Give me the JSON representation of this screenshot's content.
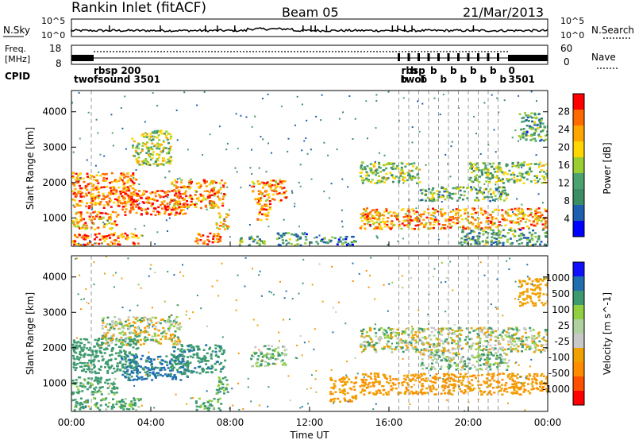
{
  "header": {
    "station": "Rankin Inlet (fitACF)",
    "beam": "Beam 05",
    "date": "21/Mar/2013"
  },
  "noise_panel": {
    "left_label": "N.Sky",
    "right_label": "N.Search",
    "left_ticks": [
      "10^5",
      "10^0"
    ],
    "right_ticks": [
      "10^5",
      "10^0"
    ]
  },
  "freq_panel": {
    "left_label_1": "Freq.",
    "left_label_2": "[MHz]",
    "left_ticks": [
      "18",
      "8"
    ],
    "right_label": "Nave",
    "right_ticks": [
      "60",
      "0"
    ]
  },
  "cpid_panel": {
    "label": "CPID",
    "entries": [
      {
        "time_h": 1.0,
        "text": "rbsp 200",
        "row": 1
      },
      {
        "time_h": 0.0,
        "text": "twofsound 3501",
        "row": 2
      },
      {
        "time_h": 16.5,
        "text": "rbsp",
        "row": 1
      },
      {
        "time_h": 16.5,
        "text": "twof",
        "row": 2
      },
      {
        "time_h": 21.9,
        "text": "0",
        "row": 1
      },
      {
        "time_h": 21.9,
        "text": "3501",
        "row": 2
      }
    ]
  },
  "colors": {
    "power_scale": [
      "#0000ff",
      "#1f5fb0",
      "#3c8d64",
      "#4aa36f",
      "#9acd32",
      "#ffd700",
      "#ffa500",
      "#ff6a00",
      "#ff0000"
    ],
    "velocity_scale": [
      "#ff0000",
      "#ff5000",
      "#ff8c00",
      "#f0a000",
      "#c8c8c8",
      "#b0d0a0",
      "#90d040",
      "#3c9a6e",
      "#1f6fb0",
      "#1010ff"
    ],
    "ground_scatter": "#9a9a9a"
  },
  "chart_data": [
    {
      "type": "heatmap",
      "title": "Power",
      "xlabel": "Time UT",
      "ylabel": "Slant Range [km]",
      "xlim": [
        0,
        24
      ],
      "ylim": [
        200,
        4600
      ],
      "xticks": [
        "00:00",
        "04:00",
        "08:00",
        "12:00",
        "16:00",
        "20:00",
        "00:00"
      ],
      "yticks": [
        1000,
        2000,
        3000,
        4000
      ],
      "colorbar": {
        "label": "Power [dB]",
        "ticks": [
          "28",
          "24",
          "20",
          "16",
          "12",
          "8",
          "4"
        ],
        "range": [
          0,
          30
        ]
      },
      "scatter_regions": [
        {
          "t": [
            0.0,
            3.3
          ],
          "r": [
            1300,
            2300
          ],
          "value": 24
        },
        {
          "t": [
            0.0,
            2.3
          ],
          "r": [
            700,
            1200
          ],
          "value": 22
        },
        {
          "t": [
            2.5,
            5.8
          ],
          "r": [
            1100,
            1800
          ],
          "value": 26
        },
        {
          "t": [
            5.0,
            7.7
          ],
          "r": [
            1300,
            2100
          ],
          "value": 22
        },
        {
          "t": [
            7.2,
            7.9
          ],
          "r": [
            700,
            1200
          ],
          "value": 20
        },
        {
          "t": [
            3.0,
            5.0
          ],
          "r": [
            2500,
            3500
          ],
          "value": 16
        },
        {
          "t": [
            0.0,
            3.5
          ],
          "r": [
            250,
            600
          ],
          "value": 24
        },
        {
          "t": [
            6.2,
            7.5
          ],
          "r": [
            250,
            600
          ],
          "value": 24
        },
        {
          "t": [
            8.3,
            9.7
          ],
          "r": [
            250,
            500
          ],
          "value": 12
        },
        {
          "t": [
            9.0,
            10.8
          ],
          "r": [
            1500,
            2100
          ],
          "value": 22
        },
        {
          "t": [
            9.3,
            10.0
          ],
          "r": [
            900,
            1500
          ],
          "value": 24
        },
        {
          "t": [
            10.3,
            11.8
          ],
          "r": [
            250,
            600
          ],
          "value": 10
        },
        {
          "t": [
            12.0,
            14.3
          ],
          "r": [
            250,
            500
          ],
          "value": 8
        },
        {
          "t": [
            14.5,
            17.5
          ],
          "r": [
            2000,
            2600
          ],
          "value": 14
        },
        {
          "t": [
            14.5,
            24.0
          ],
          "r": [
            700,
            1300
          ],
          "value": 22
        },
        {
          "t": [
            17.5,
            22.0
          ],
          "r": [
            1500,
            1900
          ],
          "value": 12
        },
        {
          "t": [
            20.0,
            24.0
          ],
          "r": [
            2000,
            2600
          ],
          "value": 14
        },
        {
          "t": [
            19.5,
            24.0
          ],
          "r": [
            250,
            700
          ],
          "value": 10
        },
        {
          "t": [
            22.5,
            24.0
          ],
          "r": [
            3200,
            4000
          ],
          "value": 10
        }
      ]
    },
    {
      "type": "heatmap",
      "title": "Velocity",
      "xlabel": "Time UT",
      "ylabel": "Slant Range [km]",
      "xlim": [
        0,
        24
      ],
      "ylim": [
        200,
        4600
      ],
      "xticks": [
        "00:00",
        "04:00",
        "08:00",
        "12:00",
        "16:00",
        "20:00",
        "00:00"
      ],
      "yticks": [
        1000,
        2000,
        3000,
        4000
      ],
      "colorbar": {
        "label": "Velocity [m s^-1]",
        "ticks": [
          "1000",
          "500",
          "100",
          "25",
          "-25",
          "-100",
          "-500",
          "-1000"
        ],
        "range": [
          -1200,
          1200
        ]
      },
      "scatter_regions": [
        {
          "t": [
            0.0,
            3.3
          ],
          "r": [
            1300,
            2300
          ],
          "value": 300
        },
        {
          "t": [
            0.0,
            2.3
          ],
          "r": [
            700,
            1200
          ],
          "value": 200
        },
        {
          "t": [
            2.5,
            5.8
          ],
          "r": [
            1100,
            1800
          ],
          "value": 600
        },
        {
          "t": [
            5.0,
            7.7
          ],
          "r": [
            1300,
            2100
          ],
          "value": 350
        },
        {
          "t": [
            7.2,
            7.9
          ],
          "r": [
            700,
            1200
          ],
          "value": 200
        },
        {
          "t": [
            1.5,
            5.5
          ],
          "r": [
            2100,
            2900
          ],
          "value": 0
        },
        {
          "t": [
            0.0,
            3.5
          ],
          "r": [
            250,
            600
          ],
          "value": 200
        },
        {
          "t": [
            6.2,
            7.5
          ],
          "r": [
            250,
            600
          ],
          "value": 200
        },
        {
          "t": [
            9.0,
            10.8
          ],
          "r": [
            1500,
            2100
          ],
          "value": 100
        },
        {
          "t": [
            13.0,
            14.3
          ],
          "r": [
            500,
            1200
          ],
          "value": -400
        },
        {
          "t": [
            14.5,
            24.0
          ],
          "r": [
            700,
            1300
          ],
          "value": -450
        },
        {
          "t": [
            14.5,
            24.0
          ],
          "r": [
            1900,
            2600
          ],
          "value": 10
        },
        {
          "t": [
            17.5,
            22.0
          ],
          "r": [
            1400,
            1900
          ],
          "value": 60
        },
        {
          "t": [
            22.5,
            24.0
          ],
          "r": [
            3200,
            4000
          ],
          "value": -300
        }
      ]
    }
  ]
}
